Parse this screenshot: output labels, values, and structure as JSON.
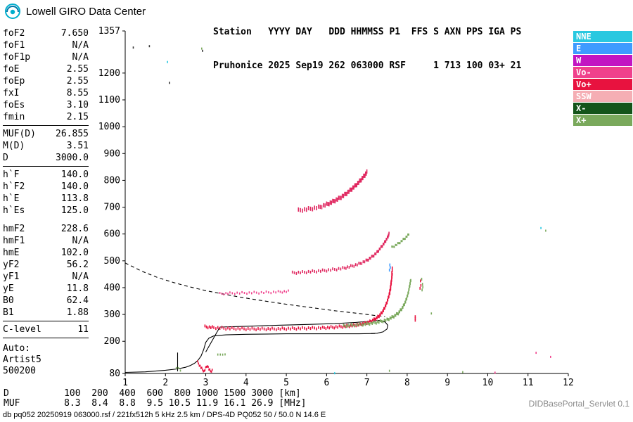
{
  "brand": {
    "title": "Lowell GIRO Data Center"
  },
  "header": {
    "line1": "Station   YYYY DAY   DDD HHMMSS P1  FFS S AXN PPS IGA PS",
    "line2": "Pruhonice 2025 Sep19 262 063000 RSF     1 713 100 03+ 21"
  },
  "parameters": {
    "groups": [
      {
        "sep": "line",
        "rows": [
          {
            "name": "foF2",
            "value": "7.650"
          },
          {
            "name": "foF1",
            "value": "N/A"
          },
          {
            "name": "foF1p",
            "value": "N/A"
          },
          {
            "name": "foE",
            "value": "2.55"
          },
          {
            "name": "foEp",
            "value": "2.55"
          },
          {
            "name": "fxI",
            "value": "8.55"
          },
          {
            "name": "foEs",
            "value": "3.10"
          },
          {
            "name": "fmin",
            "value": "2.15"
          }
        ]
      },
      {
        "sep": "line",
        "rows": [
          {
            "name": "MUF(D)",
            "value": "26.855"
          },
          {
            "name": "M(D)",
            "value": "3.51"
          },
          {
            "name": "D",
            "value": "3000.0"
          }
        ]
      },
      {
        "sep": "gap",
        "rows": [
          {
            "name": "h`F",
            "value": "140.0"
          },
          {
            "name": "h`F2",
            "value": "140.0"
          },
          {
            "name": "h`E",
            "value": "113.8"
          },
          {
            "name": "h`Es",
            "value": "125.0"
          }
        ]
      },
      {
        "sep": "line",
        "rows": [
          {
            "name": "hmF2",
            "value": "228.6"
          },
          {
            "name": "hmF1",
            "value": "N/A"
          },
          {
            "name": "hmE",
            "value": "102.0"
          },
          {
            "name": "yF2",
            "value": "56.2"
          },
          {
            "name": "yF1",
            "value": "N/A"
          },
          {
            "name": "yE",
            "value": "11.8"
          },
          {
            "name": "B0",
            "value": "62.4"
          },
          {
            "name": "B1",
            "value": "1.88"
          }
        ]
      },
      {
        "sep": "line",
        "rows": [
          {
            "name": "C-level",
            "value": "11"
          }
        ]
      }
    ],
    "auto_block": [
      "Auto:",
      "Artist5",
      "500200"
    ]
  },
  "legend": {
    "items": [
      {
        "label": "NNE",
        "color": "#29C8E0"
      },
      {
        "label": "E",
        "color": "#3E9BFF"
      },
      {
        "label": "W",
        "color": "#C215C2"
      },
      {
        "label": "Vo-",
        "color": "#F0418C"
      },
      {
        "label": "Vo+",
        "color": "#E8123F"
      },
      {
        "label": "SSW",
        "color": "#F5AEB4"
      },
      {
        "label": "X-",
        "color": "#14541A"
      },
      {
        "label": "X+",
        "color": "#7AA95C"
      }
    ]
  },
  "bottom_table": {
    "rows": [
      {
        "label": "D",
        "values": [
          "100",
          "200",
          "400",
          "600",
          "800",
          "1000",
          "1500",
          "3000"
        ],
        "unit": "[km]"
      },
      {
        "label": "MUF",
        "values": [
          "8.3",
          "8.4",
          "8.8",
          "9.5",
          "10.5",
          "11.9",
          "16.1",
          "26.9"
        ],
        "unit": "[MHz]"
      }
    ]
  },
  "footer": {
    "info_line": "db pq052 20250919 063000.rsf / 221fx512h 5 kHz 2.5 km / DPS-4D PQ052 50 / 50.0 N 14.6 E",
    "servlet_label": "DIDBasePortal_Servlet 0.1"
  },
  "chart_data": {
    "type": "scatter",
    "title": "",
    "xlabel": "",
    "ylabel": "",
    "x_unit": "MHz",
    "y_unit": "km",
    "xlim": [
      1,
      12
    ],
    "ylim": [
      80,
      1357
    ],
    "x_ticks": [
      1,
      2,
      3,
      4,
      5,
      6,
      7,
      8,
      9,
      10,
      11,
      12
    ],
    "y_ticks": [
      1357,
      1200,
      1100,
      1000,
      900,
      800,
      700,
      600,
      500,
      400,
      300,
      200,
      80
    ],
    "grid": false,
    "legend_position": "right",
    "series": [
      {
        "name": "muf-transmission-curve",
        "type": "line",
        "dash": true,
        "color": "#000000",
        "pts": [
          [
            1,
            492
          ],
          [
            1.4,
            462
          ],
          [
            1.8,
            438
          ],
          [
            2.2,
            419
          ],
          [
            2.6,
            403
          ],
          [
            3.0,
            389
          ],
          [
            3.4,
            377
          ],
          [
            3.8,
            366
          ],
          [
            4.2,
            356
          ],
          [
            4.6,
            347
          ],
          [
            5.0,
            338
          ],
          [
            5.4,
            330
          ],
          [
            5.8,
            322
          ],
          [
            6.2,
            314
          ],
          [
            6.6,
            307
          ],
          [
            6.9,
            302
          ],
          [
            7.2,
            296
          ],
          [
            7.45,
            292
          ]
        ]
      },
      {
        "name": "true-height-profile",
        "type": "line",
        "color": "#000000",
        "pts": [
          [
            1,
            84
          ],
          [
            1.5,
            86
          ],
          [
            2.0,
            92
          ],
          [
            2.3,
            97
          ],
          [
            2.5,
            103
          ],
          [
            2.62,
            110
          ],
          [
            2.72,
            118
          ],
          [
            2.8,
            128
          ],
          [
            2.88,
            144
          ],
          [
            2.95,
            170
          ],
          [
            3.0,
            196
          ],
          [
            3.08,
            212
          ],
          [
            3.2,
            220
          ],
          [
            3.5,
            224
          ],
          [
            4.0,
            226
          ],
          [
            5.0,
            228
          ],
          [
            6.0,
            228
          ],
          [
            6.8,
            228
          ],
          [
            7.2,
            229
          ]
        ]
      },
      {
        "name": "valley-line",
        "type": "line",
        "color": "#000000",
        "pts": [
          [
            3.0,
            160
          ],
          [
            3.35,
            253
          ]
        ]
      },
      {
        "name": "fmin-marker",
        "type": "line",
        "color": "#000000",
        "pts": [
          [
            2.3,
            88
          ],
          [
            2.3,
            158
          ]
        ]
      },
      {
        "name": "echo-locus",
        "type": "line",
        "color": "#000000",
        "pts": [
          [
            3.35,
            253
          ],
          [
            4.0,
            256
          ],
          [
            4.8,
            260
          ],
          [
            5.6,
            263
          ],
          [
            6.2,
            266
          ],
          [
            6.7,
            270
          ],
          [
            7.05,
            274
          ],
          [
            7.3,
            278
          ],
          [
            7.45,
            272
          ],
          [
            7.52,
            260
          ],
          [
            7.5,
            246
          ],
          [
            7.4,
            235
          ],
          [
            7.25,
            230
          ],
          [
            7.1,
            229
          ]
        ]
      },
      {
        "name": "f-trace-o",
        "type": "scatter",
        "color": "#E8123F",
        "th": 4,
        "interp": 5,
        "pts": [
          [
            2.98,
            254
          ],
          [
            3.2,
            251
          ],
          [
            3.5,
            248
          ],
          [
            3.8,
            247
          ],
          [
            4.1,
            246
          ],
          [
            4.4,
            246
          ],
          [
            4.7,
            246
          ],
          [
            5.0,
            247
          ],
          [
            5.3,
            248
          ],
          [
            5.6,
            249
          ],
          [
            5.9,
            250
          ],
          [
            6.15,
            252
          ],
          [
            6.4,
            255
          ],
          [
            6.6,
            258
          ],
          [
            6.8,
            262
          ],
          [
            6.95,
            267
          ],
          [
            7.1,
            274
          ],
          [
            7.22,
            284
          ],
          [
            7.32,
            297
          ],
          [
            7.41,
            315
          ],
          [
            7.48,
            338
          ],
          [
            7.54,
            365
          ],
          [
            7.58,
            395
          ],
          [
            7.61,
            425
          ],
          [
            7.63,
            452
          ]
        ]
      },
      {
        "name": "f-trace-o-spread",
        "type": "scatter",
        "color": "#E8123F",
        "th": 8,
        "interp": 0,
        "pts": [
          [
            7.57,
            380
          ],
          [
            7.59,
            400
          ],
          [
            7.6,
            420
          ],
          [
            7.62,
            450
          ],
          [
            7.63,
            470
          ]
        ]
      },
      {
        "name": "f-trace-x",
        "type": "scatter",
        "color": "#7AA95C",
        "th": 4,
        "interp": 5,
        "pts": [
          [
            6.42,
            257
          ],
          [
            6.65,
            260
          ],
          [
            6.9,
            263
          ],
          [
            7.1,
            267
          ],
          [
            7.3,
            272
          ],
          [
            7.5,
            280
          ],
          [
            7.65,
            291
          ],
          [
            7.78,
            305
          ],
          [
            7.88,
            324
          ],
          [
            7.96,
            348
          ],
          [
            8.02,
            376
          ],
          [
            8.06,
            405
          ],
          [
            8.09,
            430
          ]
        ]
      },
      {
        "name": "es-trace-o",
        "type": "scatter",
        "color": "#E8123F",
        "th": 3,
        "interp": 1,
        "pts": [
          [
            2.8,
            122
          ],
          [
            2.84,
            112
          ],
          [
            2.88,
            102
          ],
          [
            2.92,
            94
          ],
          [
            2.96,
            88
          ],
          [
            3.0,
            100
          ],
          [
            3.04,
            110
          ],
          [
            3.08,
            96
          ],
          [
            3.12,
            88
          ],
          [
            3.16,
            92
          ]
        ]
      },
      {
        "name": "es-trace-x",
        "type": "scatter",
        "color": "#7AA95C",
        "th": 3,
        "interp": 0,
        "pts": [
          [
            2.27,
            97
          ],
          [
            2.32,
            100
          ],
          [
            2.37,
            94
          ],
          [
            3.3,
            149
          ],
          [
            3.36,
            152
          ],
          [
            3.42,
            147
          ],
          [
            3.48,
            151
          ]
        ]
      },
      {
        "name": "hop2-near",
        "type": "scatter",
        "color": "#F0418C",
        "th": 3,
        "interp": 4,
        "pts": [
          [
            3.35,
            377
          ],
          [
            3.6,
            379
          ],
          [
            3.9,
            380
          ],
          [
            4.2,
            381
          ],
          [
            4.5,
            382
          ],
          [
            4.8,
            384
          ],
          [
            5.05,
            386
          ]
        ]
      },
      {
        "name": "hop2-trace",
        "type": "scatter",
        "color": "#E02860",
        "th": 4,
        "interp": 4,
        "pts": [
          [
            5.15,
            455
          ],
          [
            5.4,
            457
          ],
          [
            5.65,
            460
          ],
          [
            5.9,
            463
          ],
          [
            6.15,
            467
          ],
          [
            6.4,
            472
          ],
          [
            6.6,
            479
          ],
          [
            6.8,
            488
          ],
          [
            6.98,
            500
          ],
          [
            7.12,
            514
          ],
          [
            7.25,
            531
          ],
          [
            7.35,
            550
          ],
          [
            7.44,
            568
          ],
          [
            7.51,
            586
          ],
          [
            7.55,
            600
          ]
        ]
      },
      {
        "name": "hop2-trace-x",
        "type": "scatter",
        "color": "#7AA95C",
        "th": 3,
        "interp": 3,
        "pts": [
          [
            7.62,
            550
          ],
          [
            7.74,
            560
          ],
          [
            7.85,
            572
          ],
          [
            7.95,
            585
          ],
          [
            8.04,
            598
          ]
        ]
      },
      {
        "name": "hop3-trace",
        "type": "scatter",
        "color": "#E02860",
        "th": 6,
        "interp": 4,
        "pts": [
          [
            5.3,
            688
          ],
          [
            5.55,
            693
          ],
          [
            5.8,
            699
          ],
          [
            6.0,
            710
          ],
          [
            6.15,
            720
          ],
          [
            6.3,
            732
          ],
          [
            6.45,
            746
          ],
          [
            6.58,
            762
          ],
          [
            6.7,
            778
          ],
          [
            6.82,
            796
          ],
          [
            6.92,
            814
          ],
          [
            7.0,
            830
          ]
        ]
      },
      {
        "name": "cusp-e-echoes",
        "type": "scatter",
        "color": "#3E9BFF",
        "th": 4,
        "interp": 0,
        "pts": [
          [
            7.56,
            462
          ],
          [
            7.58,
            475
          ],
          [
            7.57,
            488
          ]
        ]
      },
      {
        "name": "ox-spread-o",
        "type": "scatter",
        "color": "#E8123F",
        "th": 4,
        "interp": 0,
        "pts": [
          [
            8.2,
            275
          ],
          [
            8.2,
            285
          ],
          [
            8.2,
            295
          ],
          [
            8.32,
            396
          ],
          [
            8.34,
            410
          ],
          [
            8.33,
            422
          ]
        ]
      },
      {
        "name": "ox-spread-x",
        "type": "scatter",
        "color": "#7AA95C",
        "th": 4,
        "interp": 0,
        "pts": [
          [
            8.37,
            388
          ],
          [
            8.39,
            402
          ],
          [
            8.38,
            416
          ],
          [
            8.36,
            430
          ]
        ]
      },
      {
        "name": "noise-nne",
        "type": "scatter",
        "color": "#29C8E0",
        "th": 3,
        "interp": 0,
        "pts": [
          [
            2.05,
            1238
          ],
          [
            11.32,
            622
          ],
          [
            6.2,
            84
          ]
        ]
      },
      {
        "name": "noise-x",
        "type": "scatter",
        "color": "#7AA95C",
        "th": 3,
        "interp": 0,
        "pts": [
          [
            2.9,
            1288
          ],
          [
            7.56,
            90
          ],
          [
            9.38,
            88
          ],
          [
            8.6,
            302
          ],
          [
            11.44,
            614
          ]
        ]
      },
      {
        "name": "noise-vo",
        "type": "scatter",
        "color": "#F0418C",
        "th": 3,
        "interp": 0,
        "pts": [
          [
            11.2,
            154
          ],
          [
            11.56,
            142
          ],
          [
            10.18,
            86
          ]
        ]
      },
      {
        "name": "noise-dark",
        "type": "scatter",
        "color": "#333333",
        "th": 3,
        "interp": 0,
        "pts": [
          [
            1.2,
            1292
          ],
          [
            1.6,
            1300
          ],
          [
            2.92,
            1286
          ],
          [
            2.1,
            1162
          ]
        ]
      }
    ]
  }
}
